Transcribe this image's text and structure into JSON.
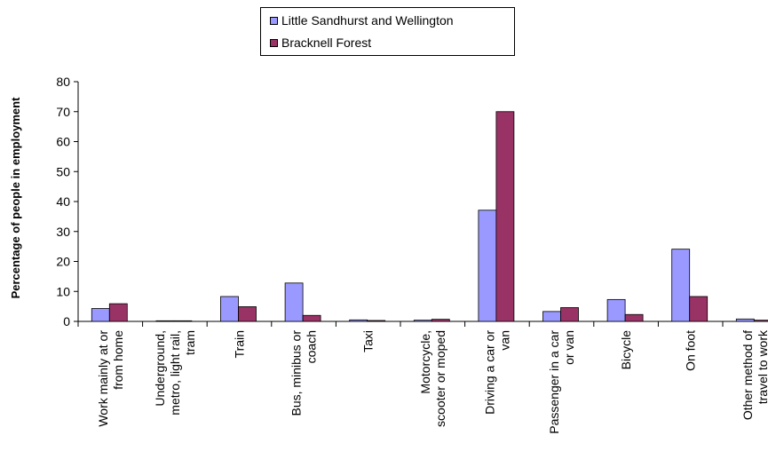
{
  "chart_data": {
    "type": "bar",
    "ylabel": "Percentage of people in employment",
    "xlabel": "",
    "ylim": [
      0,
      80
    ],
    "yticks": [
      0,
      10,
      20,
      30,
      40,
      50,
      60,
      70,
      80
    ],
    "grid": false,
    "legend_position": "top-center",
    "categories": [
      [
        "Work mainly at or",
        "from home"
      ],
      [
        "Underground,",
        "metro, light rail,",
        "tram"
      ],
      [
        "Train"
      ],
      [
        "Bus, minibus or",
        "coach"
      ],
      [
        "Taxi"
      ],
      [
        "Motorcycle,",
        "scooter or moped"
      ],
      [
        "Driving a car or",
        "van"
      ],
      [
        "Passenger in a car",
        "or van"
      ],
      [
        "Bicycle"
      ],
      [
        "On foot"
      ],
      [
        "Other method of",
        "travel to work"
      ]
    ],
    "series": [
      {
        "name": "Little Sandhurst and Wellington",
        "color": "#9999ff",
        "values": [
          4.3,
          0.2,
          8.3,
          12.8,
          0.5,
          0.4,
          37.1,
          3.3,
          7.3,
          24.1,
          0.8
        ]
      },
      {
        "name": "Bracknell Forest",
        "color": "#993366",
        "values": [
          5.9,
          0.2,
          4.9,
          2.0,
          0.3,
          0.7,
          70.0,
          4.6,
          2.3,
          8.3,
          0.4
        ]
      }
    ]
  }
}
